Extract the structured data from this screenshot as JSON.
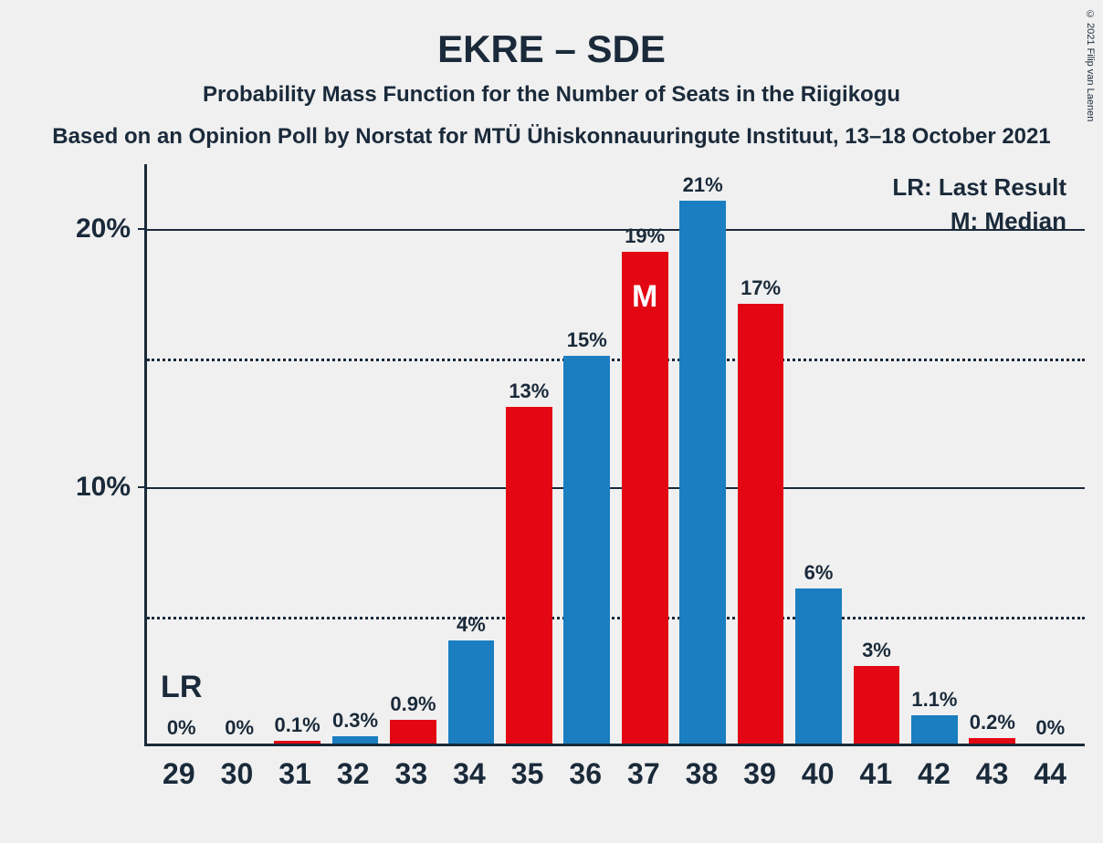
{
  "copyright": "© 2021 Filip van Laenen",
  "title": "EKRE – SDE",
  "subtitle": "Probability Mass Function for the Number of Seats in the Riigikogu",
  "source": "Based on an Opinion Poll by Norstat for MTÜ Ühiskonnauuringute Instituut, 13–18 October 2021",
  "legend": {
    "lr": "LR: Last Result",
    "m": "M: Median"
  },
  "lr_marker": "LR",
  "m_marker": "M",
  "colors": {
    "red": "#e30613",
    "blue": "#1a7ec1",
    "text": "#1a2a3a",
    "bg": "#f0f0f0"
  },
  "chart": {
    "type": "bar",
    "ymax": 22.5,
    "ylim": [
      0,
      22.5
    ],
    "yticks_major": [
      10,
      20
    ],
    "yticks_minor": [
      5,
      15
    ],
    "categories": [
      "29",
      "30",
      "31",
      "32",
      "33",
      "34",
      "35",
      "36",
      "37",
      "38",
      "39",
      "40",
      "41",
      "42",
      "43",
      "44"
    ],
    "values": [
      0,
      0,
      0.1,
      0.3,
      0.9,
      4,
      13,
      15,
      19,
      21,
      17,
      6,
      3,
      1.1,
      0.2,
      0
    ],
    "labels": [
      "0%",
      "0%",
      "0.1%",
      "0.3%",
      "0.9%",
      "4%",
      "13%",
      "15%",
      "19%",
      "21%",
      "17%",
      "6%",
      "3%",
      "1.1%",
      "0.2%",
      "0%"
    ],
    "bar_colors": [
      "red",
      "red",
      "red",
      "blue",
      "red",
      "blue",
      "red",
      "blue",
      "red",
      "blue",
      "red",
      "blue",
      "red",
      "blue",
      "red",
      "red"
    ],
    "lr_index": 0,
    "median_index": 8
  }
}
